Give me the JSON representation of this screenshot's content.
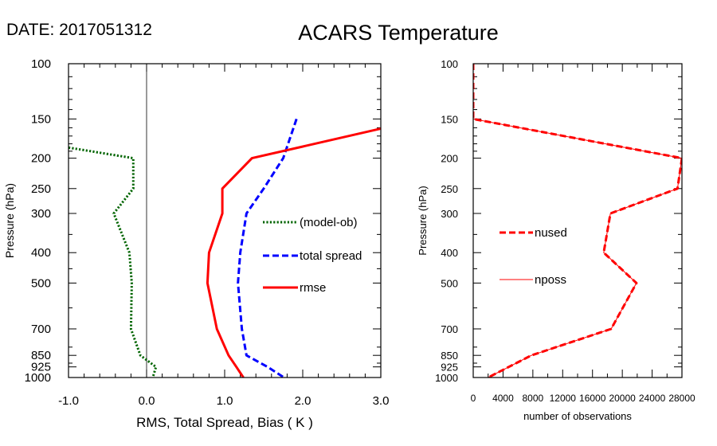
{
  "header": {
    "date_label": "DATE: 2017051312",
    "title": "ACARS Temperature"
  },
  "chart_data": [
    {
      "type": "line",
      "xlabel": "RMS, Total Spread, Bias ( K )",
      "ylabel": "Pressure (hPa)",
      "xlim": [
        -1.0,
        3.0
      ],
      "ylim": [
        1000,
        100
      ],
      "y_scale": "log",
      "x_tick_labels": [
        "-1.0",
        "0.0",
        "1.0",
        "2.0",
        "3.0"
      ],
      "x_ticks": [
        -1.0,
        0.0,
        1.0,
        2.0,
        3.0
      ],
      "y_ticks": [
        100,
        150,
        200,
        250,
        300,
        400,
        500,
        700,
        850,
        925,
        1000
      ],
      "y_tick_labels": [
        "100",
        "150",
        "200",
        "250",
        "300",
        "400",
        "500",
        "700",
        "850",
        "925",
        "1000"
      ],
      "zero_line": true,
      "legend_position": "middle-right",
      "series": [
        {
          "name": "(model-ob)",
          "color": "#006400",
          "dash": "dotted",
          "x": [
            -1.0,
            -0.17,
            -0.17,
            -0.42,
            -0.22,
            -0.19,
            -0.2,
            -0.08,
            0.12,
            0.08
          ],
          "y": [
            185,
            200,
            250,
            300,
            400,
            500,
            700,
            850,
            925,
            1000
          ]
        },
        {
          "name": "total spread",
          "color": "#0000ff",
          "dash": "dashed",
          "x": [
            1.92,
            1.75,
            1.5,
            1.28,
            1.2,
            1.17,
            1.22,
            1.28,
            1.55,
            1.76
          ],
          "y": [
            150,
            200,
            250,
            300,
            400,
            500,
            700,
            850,
            925,
            1000
          ]
        },
        {
          "name": "rmse",
          "color": "#ff0000",
          "dash": "solid",
          "x": [
            3.05,
            1.35,
            0.97,
            0.97,
            0.8,
            0.78,
            0.9,
            1.05,
            1.15,
            1.24
          ],
          "y": [
            160,
            200,
            250,
            300,
            400,
            500,
            700,
            850,
            925,
            1000
          ]
        }
      ]
    },
    {
      "type": "line",
      "xlabel": "number of observations",
      "ylabel": "Pressure (hPa)",
      "xlim": [
        0,
        28000
      ],
      "ylim": [
        1000,
        100
      ],
      "y_scale": "log",
      "x_tick_labels": [
        "0",
        "4000",
        "8000",
        "12000",
        "16000",
        "20000",
        "24000",
        "28000"
      ],
      "x_ticks": [
        0,
        4000,
        8000,
        12000,
        16000,
        20000,
        24000,
        28000
      ],
      "y_ticks": [
        100,
        150,
        200,
        250,
        300,
        400,
        500,
        700,
        850,
        925,
        1000
      ],
      "y_tick_labels": [
        "100",
        "150",
        "200",
        "250",
        "300",
        "400",
        "500",
        "700",
        "850",
        "925",
        "1000"
      ],
      "legend_position": "middle-left",
      "series": [
        {
          "name": "nused",
          "color": "#ff0000",
          "dash": "dashed",
          "x": [
            0,
            0,
            28000,
            27400,
            18400,
            17500,
            21900,
            18500,
            7800,
            2000
          ],
          "y": [
            100,
            150,
            200,
            250,
            300,
            400,
            500,
            700,
            850,
            1000
          ]
        },
        {
          "name": "nposs",
          "color": "#ff0000",
          "dash": "thin",
          "x": [
            0,
            0,
            28000,
            27400,
            18400,
            17500,
            21900,
            18500,
            7800,
            2000
          ],
          "y": [
            100,
            150,
            200,
            250,
            300,
            400,
            500,
            700,
            850,
            1000
          ]
        }
      ]
    }
  ]
}
